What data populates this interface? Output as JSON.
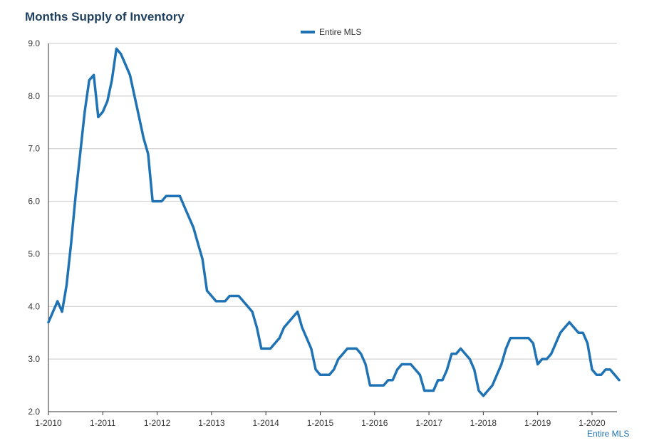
{
  "chart_data": {
    "type": "line",
    "title": "Months Supply of Inventory",
    "xlabel": "",
    "ylabel": "",
    "ylim": [
      2.0,
      9.0
    ],
    "yticks": [
      "2.0",
      "3.0",
      "4.0",
      "5.0",
      "6.0",
      "7.0",
      "8.0",
      "9.0"
    ],
    "xticks": [
      "1-2010",
      "1-2011",
      "1-2012",
      "1-2013",
      "1-2014",
      "1-2015",
      "1-2016",
      "1-2017",
      "1-2018",
      "1-2019",
      "1-2020"
    ],
    "x_start": "1-2010",
    "x_end": "6-2020",
    "grid": true,
    "legend_position": "top-center",
    "source_note": "Entire MLS",
    "series": [
      {
        "name": "Entire MLS",
        "color": "#1f72b4",
        "values": [
          3.7,
          3.9,
          4.1,
          3.9,
          4.4,
          5.2,
          6.1,
          6.9,
          7.7,
          8.3,
          8.4,
          7.6,
          7.7,
          7.9,
          8.3,
          8.9,
          8.8,
          8.6,
          8.4,
          8.0,
          7.6,
          7.2,
          6.9,
          6.0,
          6.0,
          6.0,
          6.1,
          6.1,
          6.1,
          6.1,
          5.9,
          5.7,
          5.5,
          5.2,
          4.9,
          4.3,
          4.2,
          4.1,
          4.1,
          4.1,
          4.2,
          4.2,
          4.2,
          4.1,
          4.0,
          3.9,
          3.6,
          3.2,
          3.2,
          3.2,
          3.3,
          3.4,
          3.6,
          3.7,
          3.8,
          3.9,
          3.6,
          3.4,
          3.2,
          2.8,
          2.7,
          2.7,
          2.7,
          2.8,
          3.0,
          3.1,
          3.2,
          3.2,
          3.2,
          3.1,
          2.9,
          2.5,
          2.5,
          2.5,
          2.5,
          2.6,
          2.6,
          2.8,
          2.9,
          2.9,
          2.9,
          2.8,
          2.7,
          2.4,
          2.4,
          2.4,
          2.6,
          2.6,
          2.8,
          3.1,
          3.1,
          3.2,
          3.1,
          3.0,
          2.8,
          2.4,
          2.3,
          2.4,
          2.5,
          2.7,
          2.9,
          3.2,
          3.4,
          3.4,
          3.4,
          3.4,
          3.4,
          3.3,
          2.9,
          3.0,
          3.0,
          3.1,
          3.3,
          3.5,
          3.6,
          3.7,
          3.6,
          3.5,
          3.5,
          3.3,
          2.8,
          2.7,
          2.7,
          2.8,
          2.8,
          2.7,
          2.6
        ]
      }
    ]
  }
}
